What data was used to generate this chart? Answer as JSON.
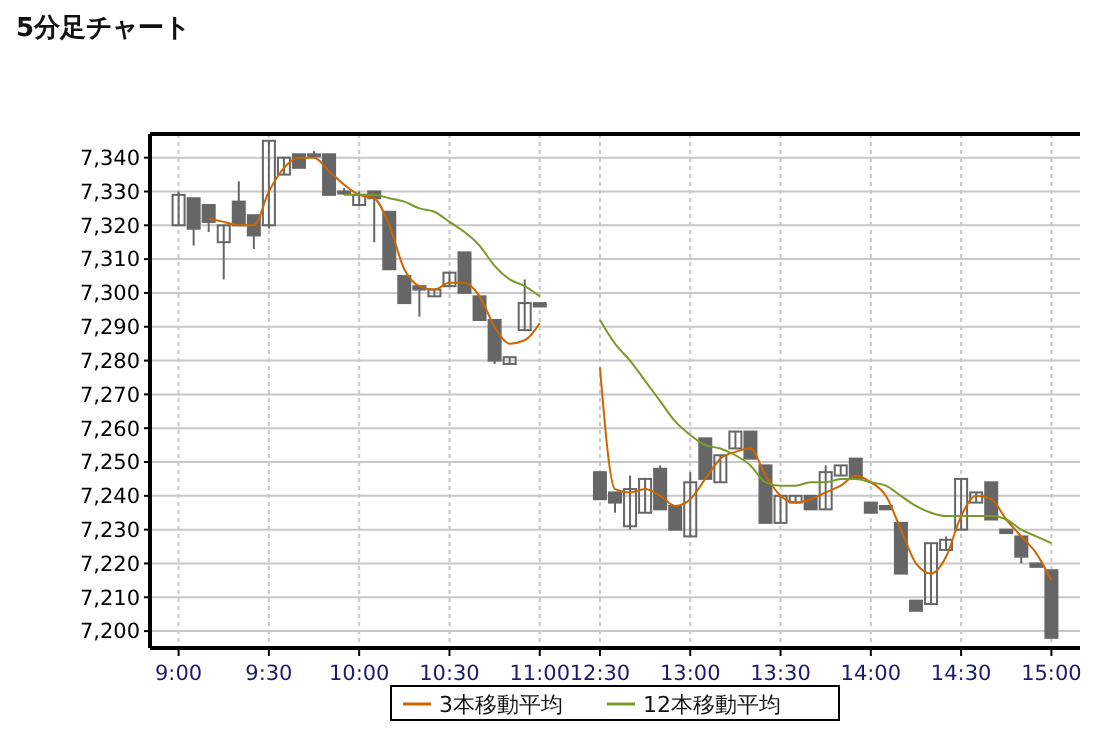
{
  "chart_data": {
    "type": "candlestick",
    "title": "5分足チャート",
    "categories": [
      "9:00",
      null,
      null,
      null,
      null,
      null,
      "9:30",
      null,
      null,
      null,
      null,
      null,
      "10:00",
      null,
      null,
      null,
      null,
      null,
      "10:30",
      null,
      null,
      null,
      null,
      null,
      "11:00",
      null,
      null,
      null,
      "12:30",
      null,
      null,
      null,
      null,
      null,
      "13:00",
      null,
      null,
      null,
      null,
      null,
      "13:30",
      null,
      null,
      null,
      null,
      null,
      "14:00",
      null,
      null,
      null,
      null,
      null,
      "14:30",
      null,
      null,
      null,
      null,
      null,
      "15:00"
    ],
    "ohlc": [
      [
        7320,
        7330,
        7320,
        7329
      ],
      [
        7328,
        7328,
        7314,
        7319
      ],
      [
        7326,
        7326,
        7318,
        7321
      ],
      [
        7315,
        7320,
        7304,
        7320
      ],
      [
        7327,
        7333,
        7320,
        7320
      ],
      [
        7323,
        7323,
        7313,
        7317
      ],
      [
        7320,
        7345,
        7319,
        7345
      ],
      [
        7335,
        7340,
        7335,
        7340
      ],
      [
        7341,
        7341,
        7337,
        7337
      ],
      [
        7341,
        7342,
        7341,
        7341
      ],
      [
        7341,
        7341,
        7329,
        7329
      ],
      [
        7330,
        7331,
        7329,
        7330
      ],
      [
        7326,
        7330,
        7326,
        7329
      ],
      [
        7330,
        7330,
        7315,
        7328
      ],
      [
        7324,
        7324,
        7307,
        7307
      ],
      [
        7305,
        7305,
        7297,
        7297
      ],
      [
        7302,
        7302,
        7293,
        7301
      ],
      [
        7299,
        7301,
        7299,
        7301
      ],
      [
        7302,
        7306,
        7302,
        7306
      ],
      [
        7312,
        7312,
        7300,
        7300
      ],
      [
        7299,
        7299,
        7292,
        7292
      ],
      [
        7292,
        7292,
        7279,
        7280
      ],
      [
        7279,
        7281,
        7279,
        7281
      ],
      [
        7289,
        7304,
        7289,
        7297
      ],
      [
        7297,
        7297,
        7296,
        7296
      ],
      null,
      null,
      null,
      [
        7247,
        7247,
        7239,
        7239
      ],
      [
        7241,
        7241,
        7235,
        7238
      ],
      [
        7231,
        7246,
        7230,
        7242
      ],
      [
        7235,
        7245,
        7235,
        7245
      ],
      [
        7248,
        7249,
        7236,
        7236
      ],
      [
        7237,
        7237,
        7230,
        7230
      ],
      [
        7228,
        7247,
        7228,
        7244
      ],
      [
        7257,
        7257,
        7245,
        7245
      ],
      [
        7244,
        7252,
        7244,
        7252
      ],
      [
        7254,
        7259,
        7254,
        7259
      ],
      [
        7259,
        7259,
        7251,
        7251
      ],
      [
        7249,
        7249,
        7232,
        7232
      ],
      [
        7232,
        7240,
        7232,
        7240
      ],
      [
        7238,
        7240,
        7238,
        7240
      ],
      [
        7240,
        7240,
        7236,
        7236
      ],
      [
        7236,
        7249,
        7236,
        7247
      ],
      [
        7246,
        7249,
        7246,
        7249
      ],
      [
        7251,
        7251,
        7245,
        7245
      ],
      [
        7238,
        7238,
        7235,
        7235
      ],
      [
        7237,
        7237,
        7236,
        7236
      ],
      [
        7232,
        7232,
        7217,
        7217
      ],
      [
        7209,
        7209,
        7206,
        7206
      ],
      [
        7208,
        7226,
        7208,
        7226
      ],
      [
        7224,
        7228,
        7224,
        7227
      ],
      [
        7230,
        7245,
        7230,
        7245
      ],
      [
        7238,
        7241,
        7238,
        7241
      ],
      [
        7244,
        7244,
        7233,
        7233
      ],
      [
        7230,
        7230,
        7229,
        7229
      ],
      [
        7228,
        7228,
        7220,
        7222
      ],
      [
        7220,
        7220,
        7219,
        7219
      ],
      [
        7218,
        7218,
        7198,
        7198
      ]
    ],
    "color": "#666666",
    "series": [
      {
        "name": "3本移動平均",
        "type": "line",
        "color": "#cc6600",
        "values": [
          null,
          null,
          7322,
          7321,
          7320,
          7320,
          7330,
          7337,
          7340,
          7340,
          7336,
          7332,
          7329,
          7328,
          7320,
          7307,
          7302,
          7301,
          7303,
          7303,
          7299,
          7290,
          7285,
          7286,
          7291,
          null,
          null,
          null,
          7278,
          7242,
          7241,
          7242,
          7240,
          7237,
          7239,
          7245,
          7251,
          7253,
          7254,
          7246,
          7240,
          7238,
          7239,
          7241,
          7243,
          7246,
          7244,
          7240,
          7230,
          7220,
          7217,
          7222,
          7234,
          7240,
          7239,
          7233,
          7228,
          7223,
          7215
        ]
      },
      {
        "name": "12本移動平均",
        "type": "line",
        "color": "#7a9a2a",
        "values": [
          null,
          null,
          null,
          null,
          null,
          null,
          null,
          null,
          null,
          null,
          null,
          7329,
          7329,
          7329,
          7328,
          7327,
          7325,
          7324,
          7321,
          7318,
          7314,
          7308,
          7304,
          7302,
          7299,
          null,
          null,
          null,
          7292,
          7285,
          7280,
          7274,
          7268,
          7262,
          7258,
          7255,
          7254,
          7252,
          7249,
          7244,
          7243,
          7243,
          7244,
          7244,
          7245,
          7245,
          7244,
          7243,
          7240,
          7237,
          7235,
          7234,
          7234,
          7234,
          7234,
          7233,
          7230,
          7228,
          7226
        ]
      }
    ],
    "ylim": [
      7195,
      7347
    ],
    "yticks": [
      {
        "value": 7200,
        "label": "7,200"
      },
      {
        "value": 7210,
        "label": "7,210"
      },
      {
        "value": 7220,
        "label": "7,220"
      },
      {
        "value": 7230,
        "label": "7,230"
      },
      {
        "value": 7240,
        "label": "7,240"
      },
      {
        "value": 7250,
        "label": "7,250"
      },
      {
        "value": 7260,
        "label": "7,260"
      },
      {
        "value": 7270,
        "label": "7,270"
      },
      {
        "value": 7280,
        "label": "7,280"
      },
      {
        "value": 7290,
        "label": "7,290"
      },
      {
        "value": 7300,
        "label": "7,300"
      },
      {
        "value": 7310,
        "label": "7,310"
      },
      {
        "value": 7320,
        "label": "7,320"
      },
      {
        "value": 7330,
        "label": "7,330"
      },
      {
        "value": 7340,
        "label": "7,340"
      }
    ],
    "grid": true,
    "legend": "bottom",
    "marker": "none",
    "line_style": "solid"
  }
}
